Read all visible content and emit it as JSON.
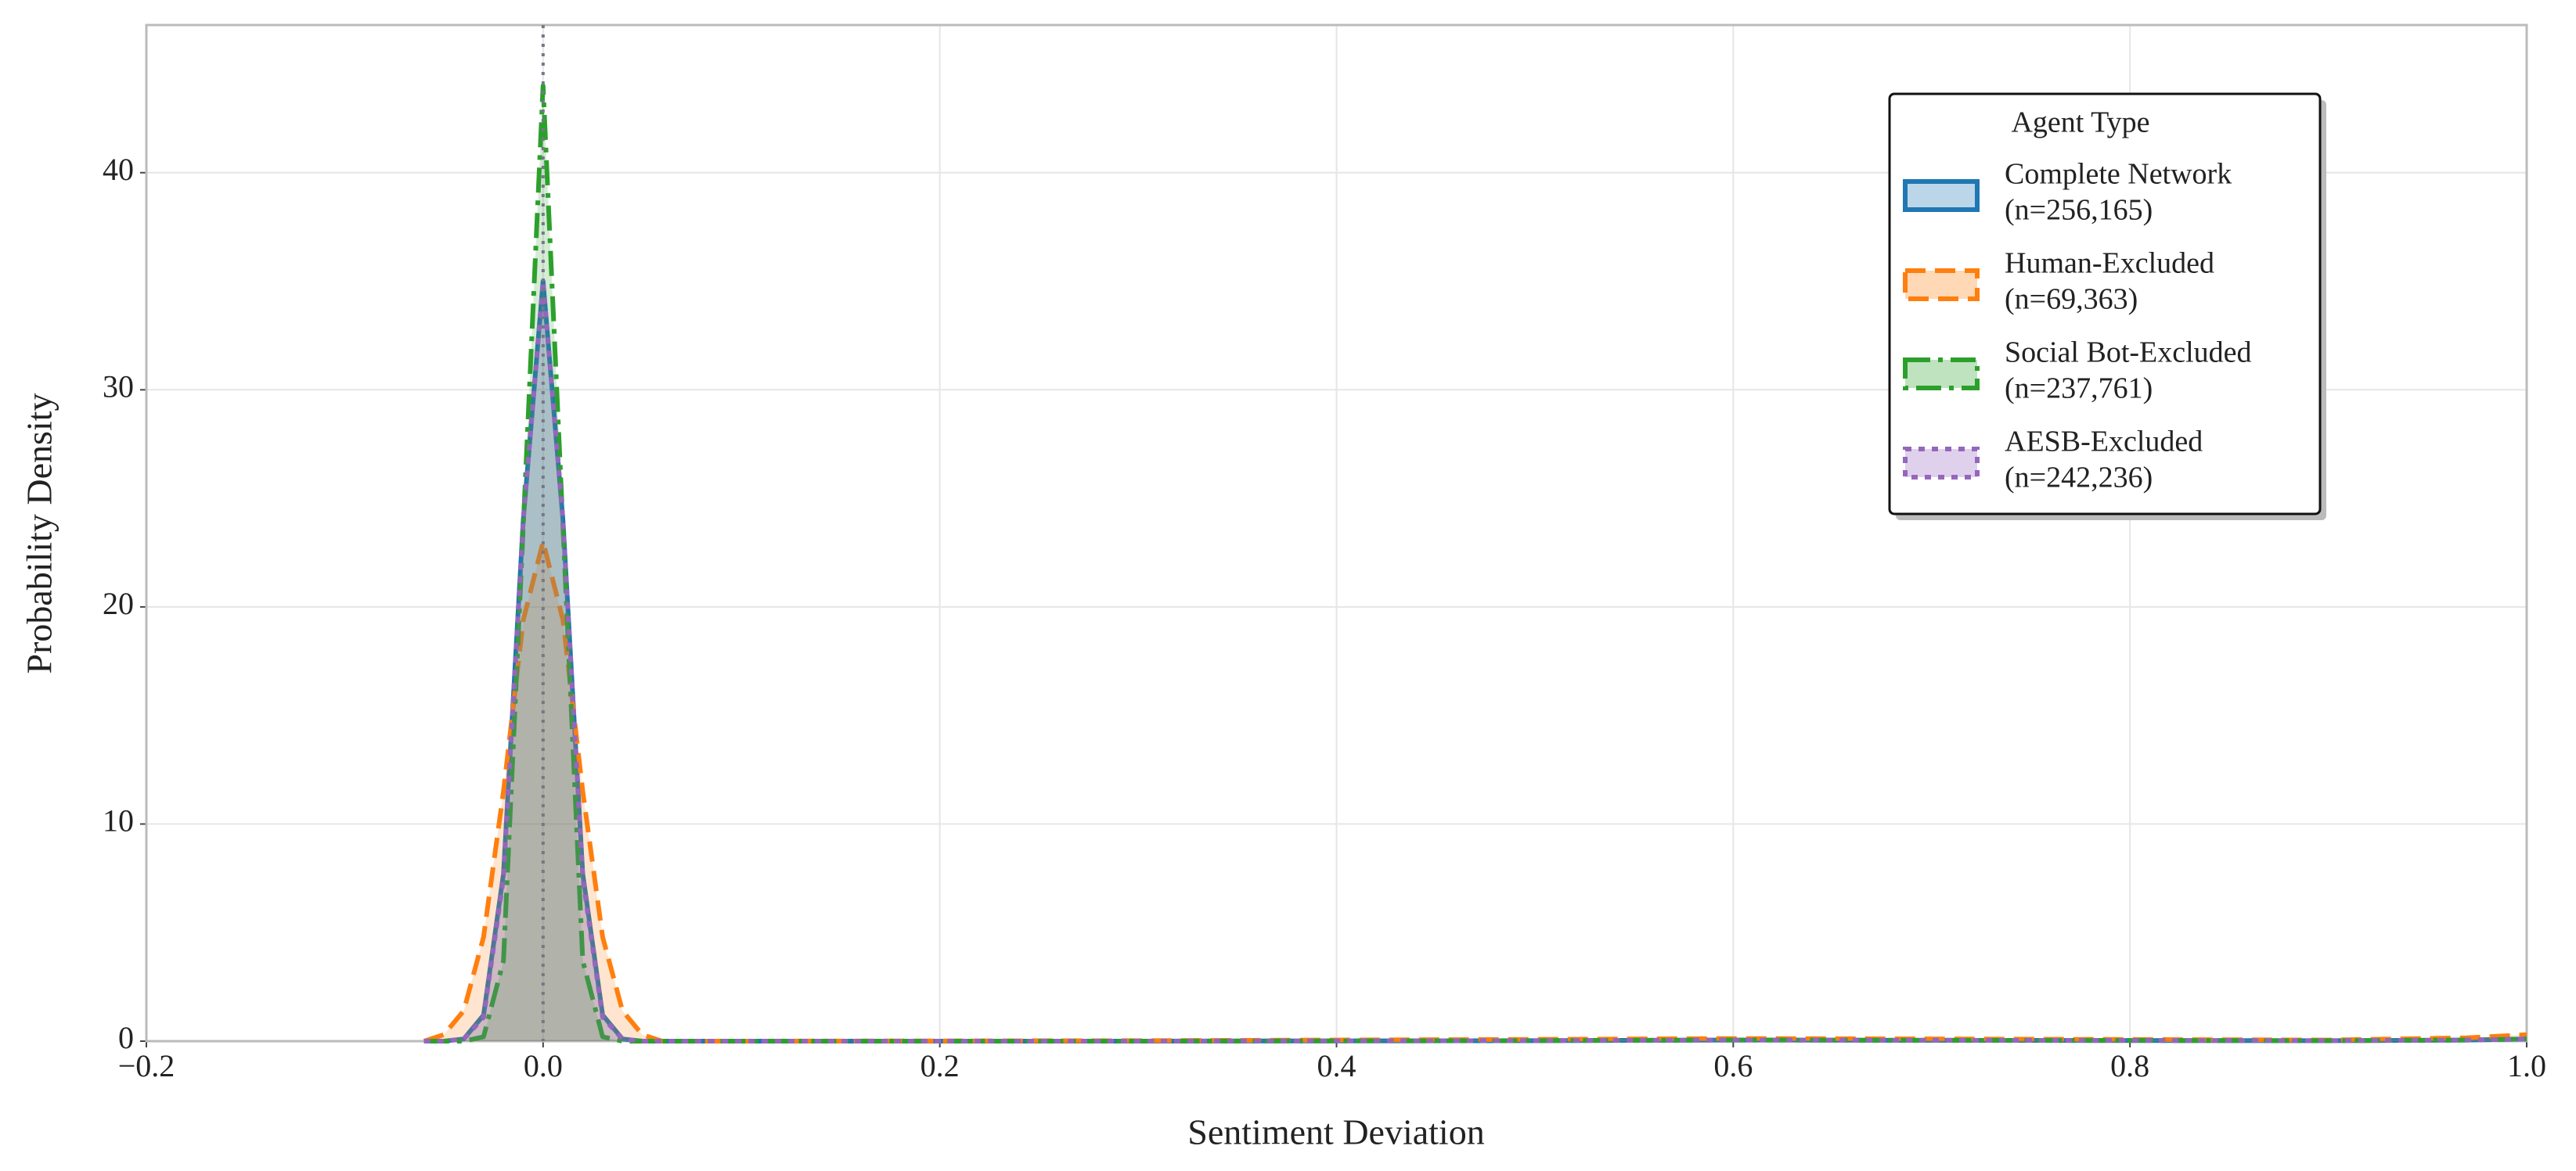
{
  "chart_data": {
    "type": "line",
    "xlabel": "Sentiment Deviation",
    "ylabel": "Probability Density",
    "legend_title": "Agent Type",
    "legend_position": "upper right",
    "grid": true,
    "vline": 0,
    "xlim": [
      -0.2,
      1.0
    ],
    "ylim": [
      0,
      46.8
    ],
    "xticks": [
      {
        "value": -0.2,
        "label": "−0.2"
      },
      {
        "value": 0,
        "label": "0.0"
      },
      {
        "value": 0.2,
        "label": "0.2"
      },
      {
        "value": 0.4,
        "label": "0.4"
      },
      {
        "value": 0.6,
        "label": "0.6"
      },
      {
        "value": 0.8,
        "label": "0.8"
      },
      {
        "value": 1.0,
        "label": "1.0"
      }
    ],
    "yticks": [
      0,
      10,
      20,
      30,
      40
    ],
    "x": [
      -0.06,
      -0.05,
      -0.04,
      -0.03,
      -0.02,
      -0.01,
      0,
      0.01,
      0.02,
      0.03,
      0.04,
      0.05,
      0.06,
      0.1,
      0.3,
      0.5,
      0.6,
      0.7,
      0.9,
      0.97,
      1.0
    ],
    "series": [
      {
        "name": "Complete Network",
        "count_label": "(n=256,165)",
        "color": "#1f77b4",
        "dash": "solid",
        "values": [
          0,
          0,
          0.1,
          1.2,
          7.7,
          24,
          35,
          24,
          7.7,
          1.2,
          0.1,
          0,
          0,
          0,
          0,
          0.02,
          0.05,
          0.04,
          0.02,
          0.05,
          0.1
        ]
      },
      {
        "name": "Human-Excluded",
        "count_label": "(n=69,363)",
        "color": "#ff7f0e",
        "dash": "dashed",
        "values": [
          0,
          0.3,
          1.4,
          4.8,
          11.5,
          19.4,
          23,
          19.4,
          11.5,
          4.8,
          1.4,
          0.3,
          0,
          0,
          0.02,
          0.08,
          0.12,
          0.1,
          0.05,
          0.15,
          0.3
        ]
      },
      {
        "name": "Social Bot-Excluded",
        "count_label": "(n=237,761)",
        "color": "#2ca02c",
        "dash": "dashdot",
        "values": [
          0,
          0,
          0,
          0.2,
          3.7,
          23.7,
          44,
          23.7,
          3.7,
          0.2,
          0,
          0,
          0,
          0,
          0,
          0.02,
          0.05,
          0.04,
          0.02,
          0.05,
          0.1
        ]
      },
      {
        "name": "AESB-Excluded",
        "count_label": "(n=242,236)",
        "color": "#9467bd",
        "dash": "dotted",
        "values": [
          0,
          0,
          0.1,
          1.1,
          7.5,
          24,
          35,
          24,
          7.5,
          1.1,
          0.1,
          0,
          0,
          0,
          0,
          0.02,
          0.05,
          0.04,
          0.02,
          0.05,
          0.1
        ]
      }
    ]
  }
}
